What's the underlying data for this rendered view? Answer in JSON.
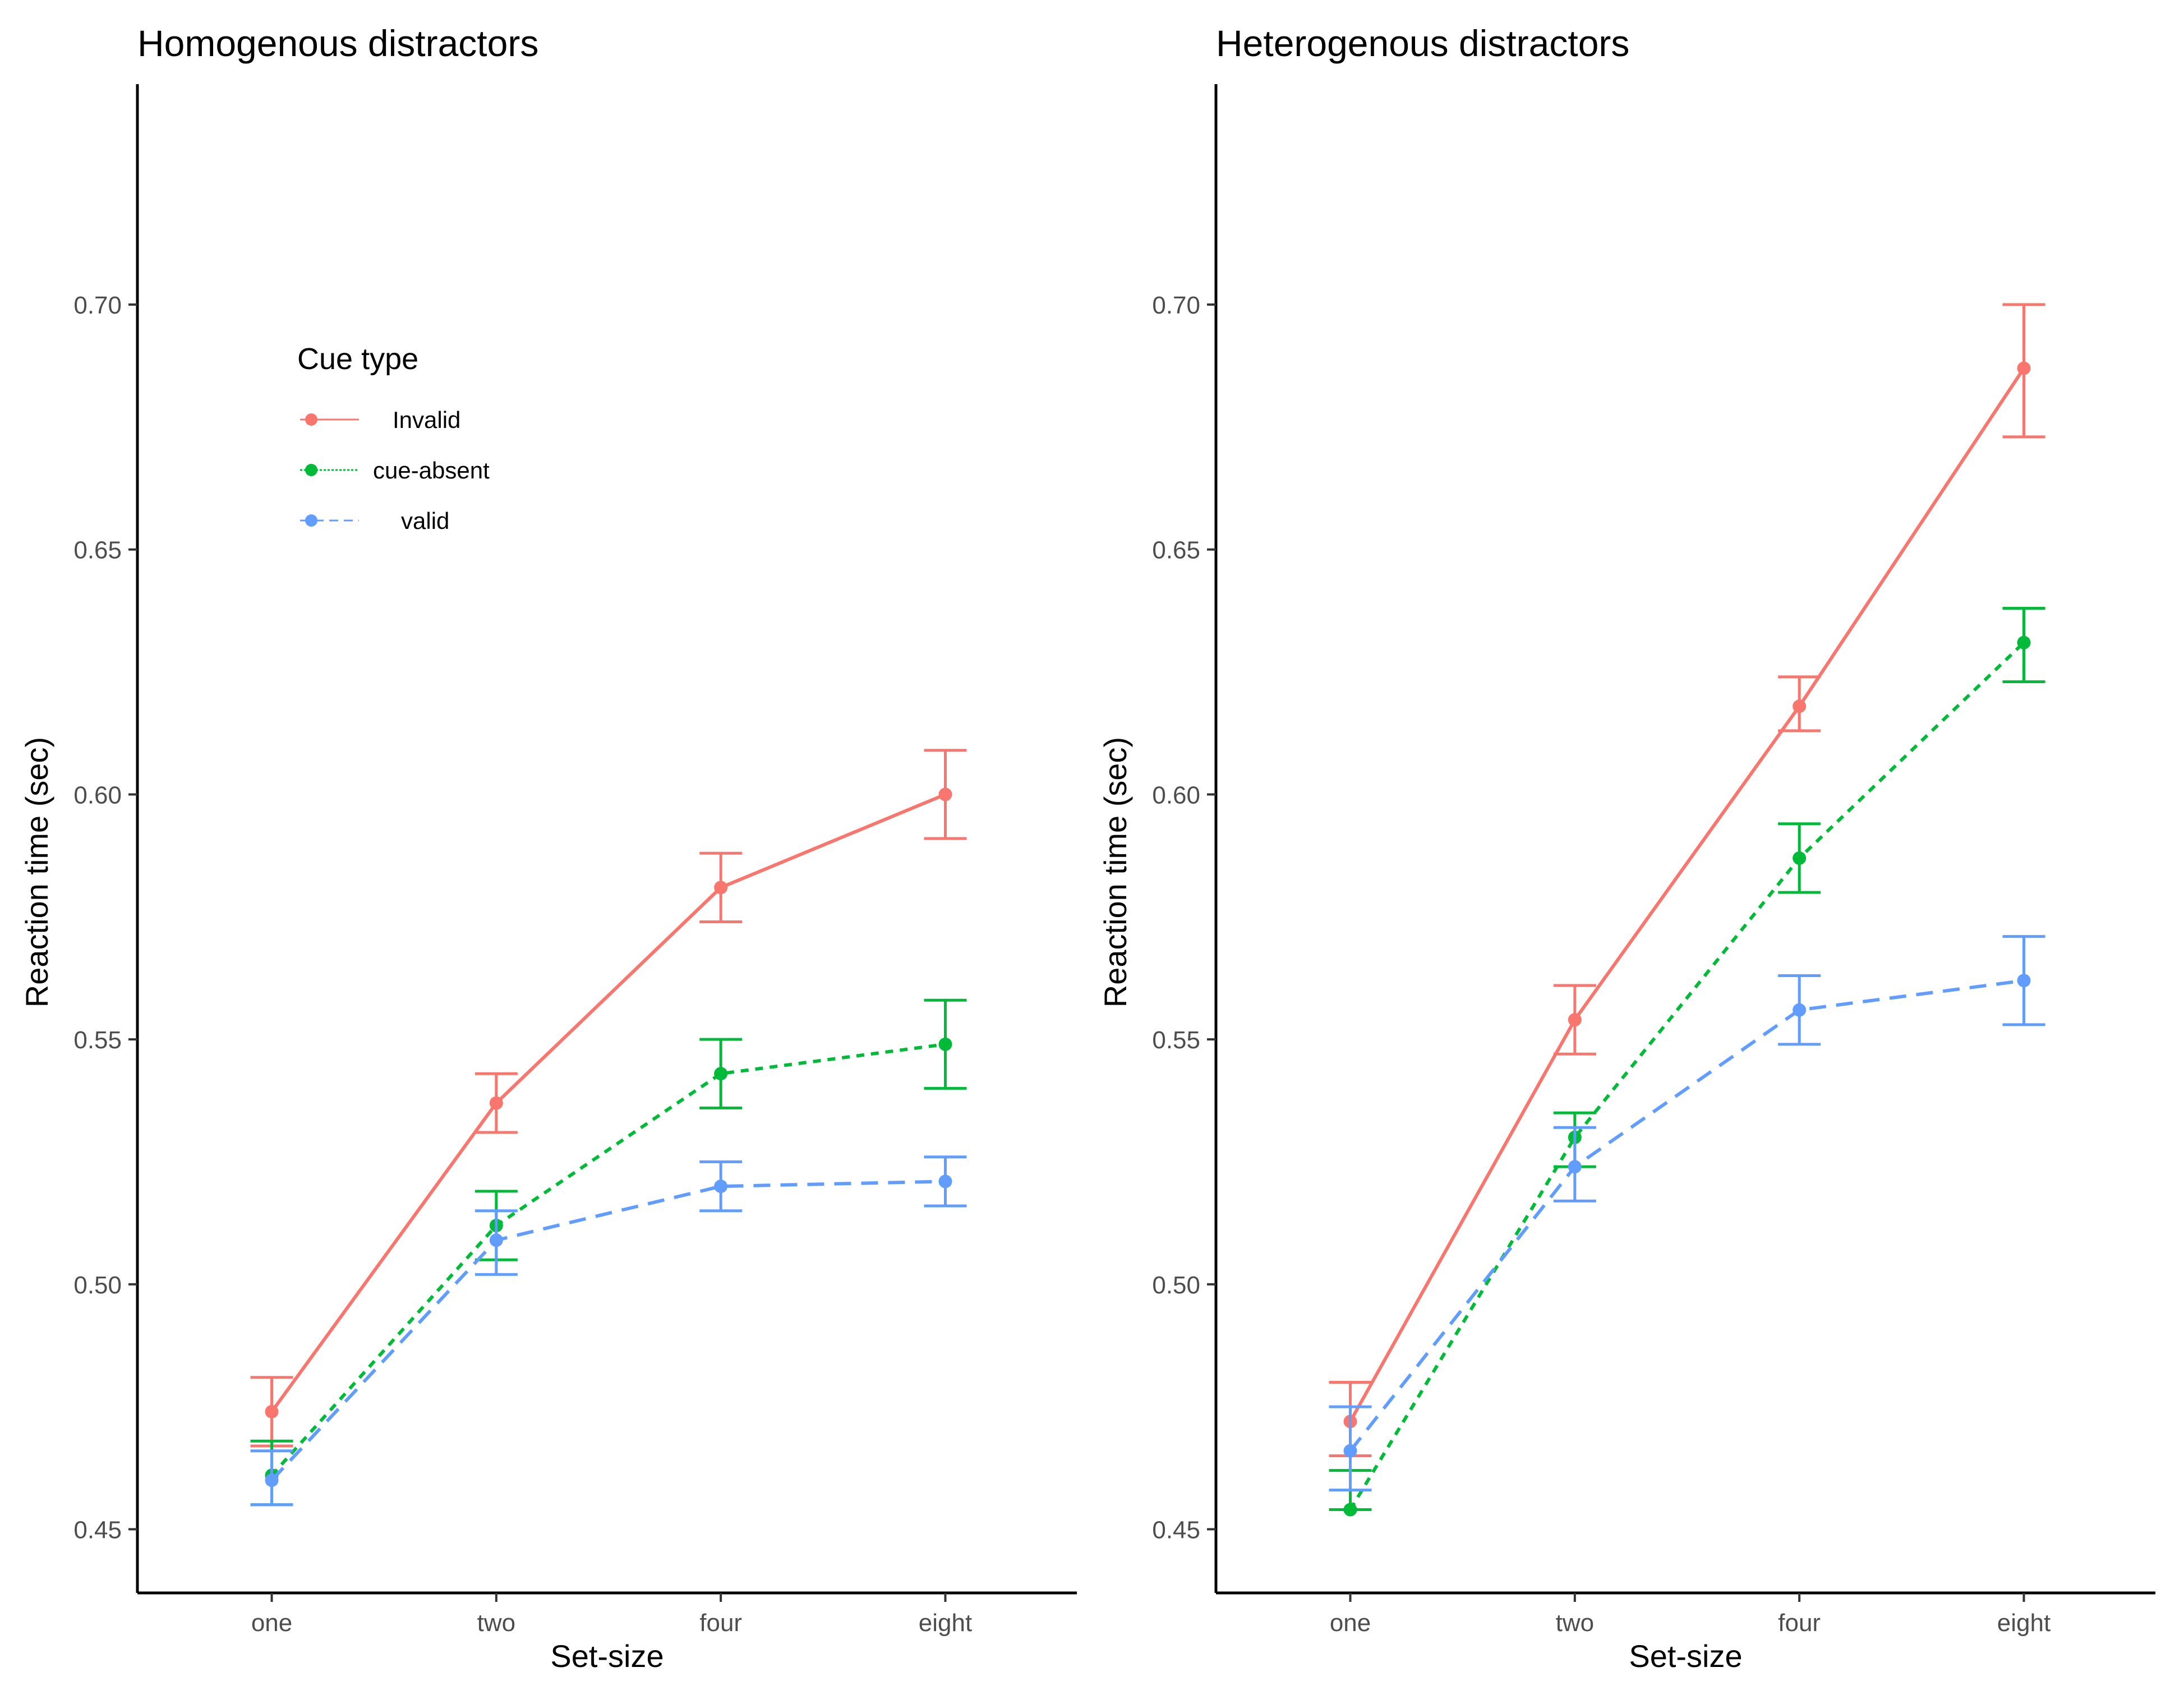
{
  "chart_data": [
    {
      "type": "line",
      "title": "Homogenous distractors",
      "xlabel": "Set-size",
      "ylabel": "Reaction time (sec)",
      "categories": [
        "one",
        "two",
        "four",
        "eight"
      ],
      "ylim": [
        0.437,
        0.745
      ],
      "yticks": [
        "0.45",
        "0.50",
        "0.55",
        "0.60",
        "0.65",
        "0.70"
      ],
      "grid": false,
      "legend": {
        "title": "Cue type",
        "placement": "top-left",
        "entries": [
          "Invalid",
          "cue-absent",
          "valid"
        ]
      },
      "series": [
        {
          "name": "Invalid",
          "color": "#F8766D",
          "dash": "solid",
          "values": [
            0.474,
            0.537,
            0.581,
            0.6
          ],
          "lower": [
            0.467,
            0.531,
            0.574,
            0.591
          ],
          "upper": [
            0.481,
            0.543,
            0.588,
            0.609
          ]
        },
        {
          "name": "cue-absent",
          "color": "#00BA38",
          "dash": "dotted",
          "values": [
            0.461,
            0.512,
            0.543,
            0.549
          ],
          "lower": [
            0.455,
            0.505,
            0.536,
            0.54
          ],
          "upper": [
            0.468,
            0.519,
            0.55,
            0.558
          ]
        },
        {
          "name": "valid",
          "color": "#619CFF",
          "dash": "dashed",
          "values": [
            0.46,
            0.509,
            0.52,
            0.521
          ],
          "lower": [
            0.455,
            0.502,
            0.515,
            0.516
          ],
          "upper": [
            0.466,
            0.515,
            0.525,
            0.526
          ]
        }
      ]
    },
    {
      "type": "line",
      "title": "Heterogenous distractors",
      "xlabel": "Set-size",
      "ylabel": "Reaction time (sec)",
      "categories": [
        "one",
        "two",
        "four",
        "eight"
      ],
      "ylim": [
        0.437,
        0.745
      ],
      "yticks": [
        "0.45",
        "0.50",
        "0.55",
        "0.60",
        "0.65",
        "0.70"
      ],
      "grid": false,
      "series": [
        {
          "name": "Invalid",
          "color": "#F8766D",
          "dash": "solid",
          "values": [
            0.472,
            0.554,
            0.618,
            0.687
          ],
          "lower": [
            0.465,
            0.547,
            0.613,
            0.673
          ],
          "upper": [
            0.48,
            0.561,
            0.624,
            0.7
          ]
        },
        {
          "name": "cue-absent",
          "color": "#00BA38",
          "dash": "dotted",
          "values": [
            0.454,
            0.53,
            0.587,
            0.631
          ],
          "lower": [
            0.454,
            0.524,
            0.58,
            0.623
          ],
          "upper": [
            0.462,
            0.535,
            0.594,
            0.638
          ]
        },
        {
          "name": "valid",
          "color": "#619CFF",
          "dash": "dashed",
          "values": [
            0.466,
            0.524,
            0.556,
            0.562
          ],
          "lower": [
            0.458,
            0.517,
            0.549,
            0.553
          ],
          "upper": [
            0.475,
            0.532,
            0.563,
            0.571
          ]
        }
      ]
    }
  ]
}
